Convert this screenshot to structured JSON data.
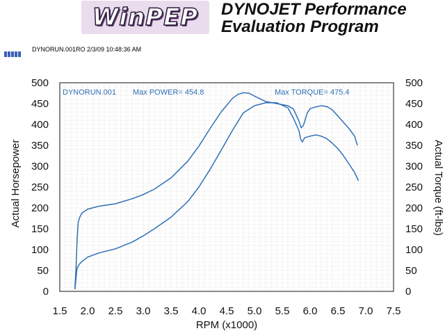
{
  "header": {
    "logo_text": "WinPEP",
    "brand_line1": "DYNOJET Performance",
    "brand_line2": "Evaluation Program",
    "file_id": "DYNORUN.001RO  2/3/09 10:48:36 AM"
  },
  "chart_data": {
    "type": "line",
    "run_label": "DYNORUN.001",
    "max_power_label": "Max POWER= 454.8",
    "max_torque_label": "Max TORQUE= 475.4",
    "xlabel": "RPM (x1000)",
    "ylabel": "Actual Horsepower",
    "ylabel_right": "Actual Torque (ft-lbs)",
    "xlim": [
      1.5,
      7.5
    ],
    "ylim": [
      0,
      500
    ],
    "xticks": [
      "1.5",
      "2.0",
      "2.5",
      "3.0",
      "3.5",
      "4.0",
      "4.5",
      "5.0",
      "5.5",
      "6.0",
      "6.5",
      "7.0",
      "7.5"
    ],
    "yticks": [
      "0",
      "50",
      "100",
      "150",
      "200",
      "250",
      "300",
      "350",
      "400",
      "450",
      "500"
    ],
    "grid": true,
    "line_color": "#2e6fb6",
    "series": [
      {
        "x": [
          1.77,
          1.79,
          1.81,
          1.83,
          1.86,
          1.9,
          2.0,
          2.2,
          2.5,
          2.8,
          3.0,
          3.2,
          3.5,
          3.8,
          4.0,
          4.2,
          4.4,
          4.6,
          4.7,
          4.8,
          4.9,
          5.0,
          5.2,
          5.4,
          5.6,
          5.7,
          5.8,
          5.84,
          5.88,
          5.95,
          6.0,
          6.1,
          6.2,
          6.3,
          6.4,
          6.5,
          6.6,
          6.7,
          6.8,
          6.85
        ],
        "values": [
          5,
          50,
          120,
          165,
          178,
          188,
          197,
          204,
          210,
          222,
          232,
          245,
          272,
          312,
          348,
          390,
          430,
          462,
          472,
          476,
          475,
          468,
          455,
          450,
          445,
          437,
          408,
          392,
          398,
          428,
          438,
          442,
          445,
          443,
          435,
          420,
          405,
          390,
          372,
          350
        ]
      },
      {
        "x": [
          1.77,
          1.79,
          1.81,
          1.85,
          1.9,
          2.0,
          2.2,
          2.5,
          2.8,
          3.0,
          3.2,
          3.5,
          3.8,
          4.0,
          4.2,
          4.4,
          4.6,
          4.8,
          5.0,
          5.2,
          5.4,
          5.6,
          5.7,
          5.8,
          5.83,
          5.86,
          5.9,
          6.0,
          6.1,
          6.2,
          6.3,
          6.4,
          6.5,
          6.6,
          6.7,
          6.8,
          6.87
        ],
        "values": [
          5,
          30,
          55,
          65,
          72,
          82,
          92,
          102,
          118,
          133,
          150,
          178,
          215,
          250,
          292,
          338,
          385,
          428,
          445,
          452,
          452,
          440,
          415,
          385,
          365,
          358,
          368,
          372,
          375,
          372,
          366,
          355,
          342,
          325,
          305,
          285,
          265
        ]
      }
    ]
  }
}
